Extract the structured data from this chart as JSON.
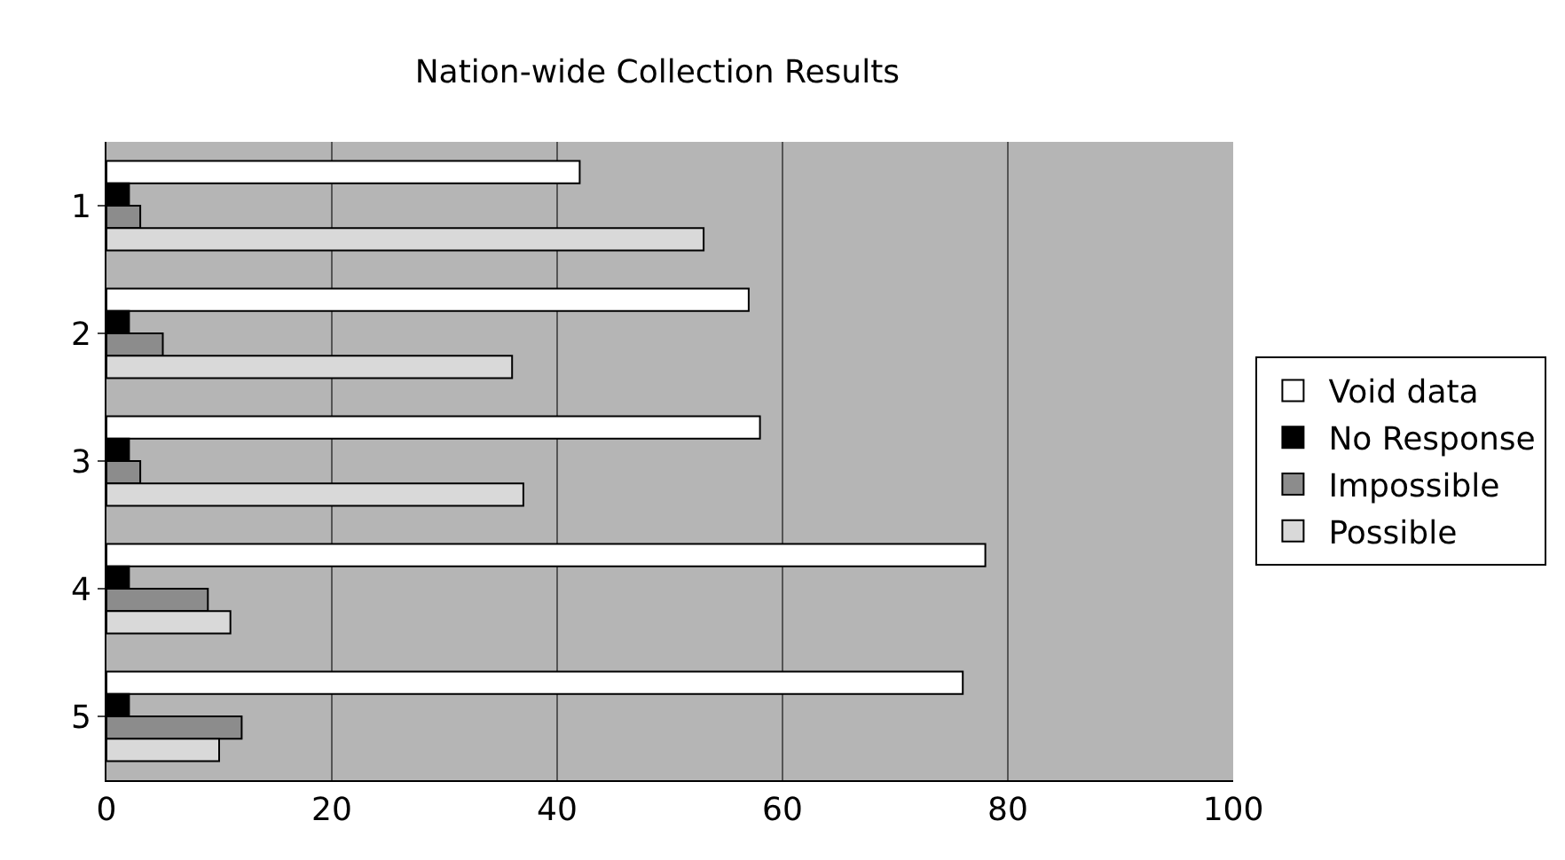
{
  "chart_data": {
    "type": "bar",
    "orientation": "horizontal",
    "title": "Nation-wide Collection Results",
    "categories": [
      "1",
      "2",
      "3",
      "4",
      "5"
    ],
    "series": [
      {
        "name": "Void data",
        "color": "#ffffff",
        "values": [
          42,
          57,
          58,
          78,
          76
        ]
      },
      {
        "name": "No Response",
        "color": "#000000",
        "values": [
          2,
          2,
          2,
          2,
          2
        ]
      },
      {
        "name": "Impossible",
        "color": "#8c8c8c",
        "values": [
          3,
          5,
          3,
          9,
          12
        ]
      },
      {
        "name": "Possible",
        "color": "#d9d9d9",
        "values": [
          53,
          36,
          37,
          11,
          10
        ]
      }
    ],
    "xlim": [
      0,
      100
    ],
    "xticks": [
      0,
      20,
      40,
      60,
      80,
      100
    ],
    "grid": "x",
    "legend": "right"
  }
}
